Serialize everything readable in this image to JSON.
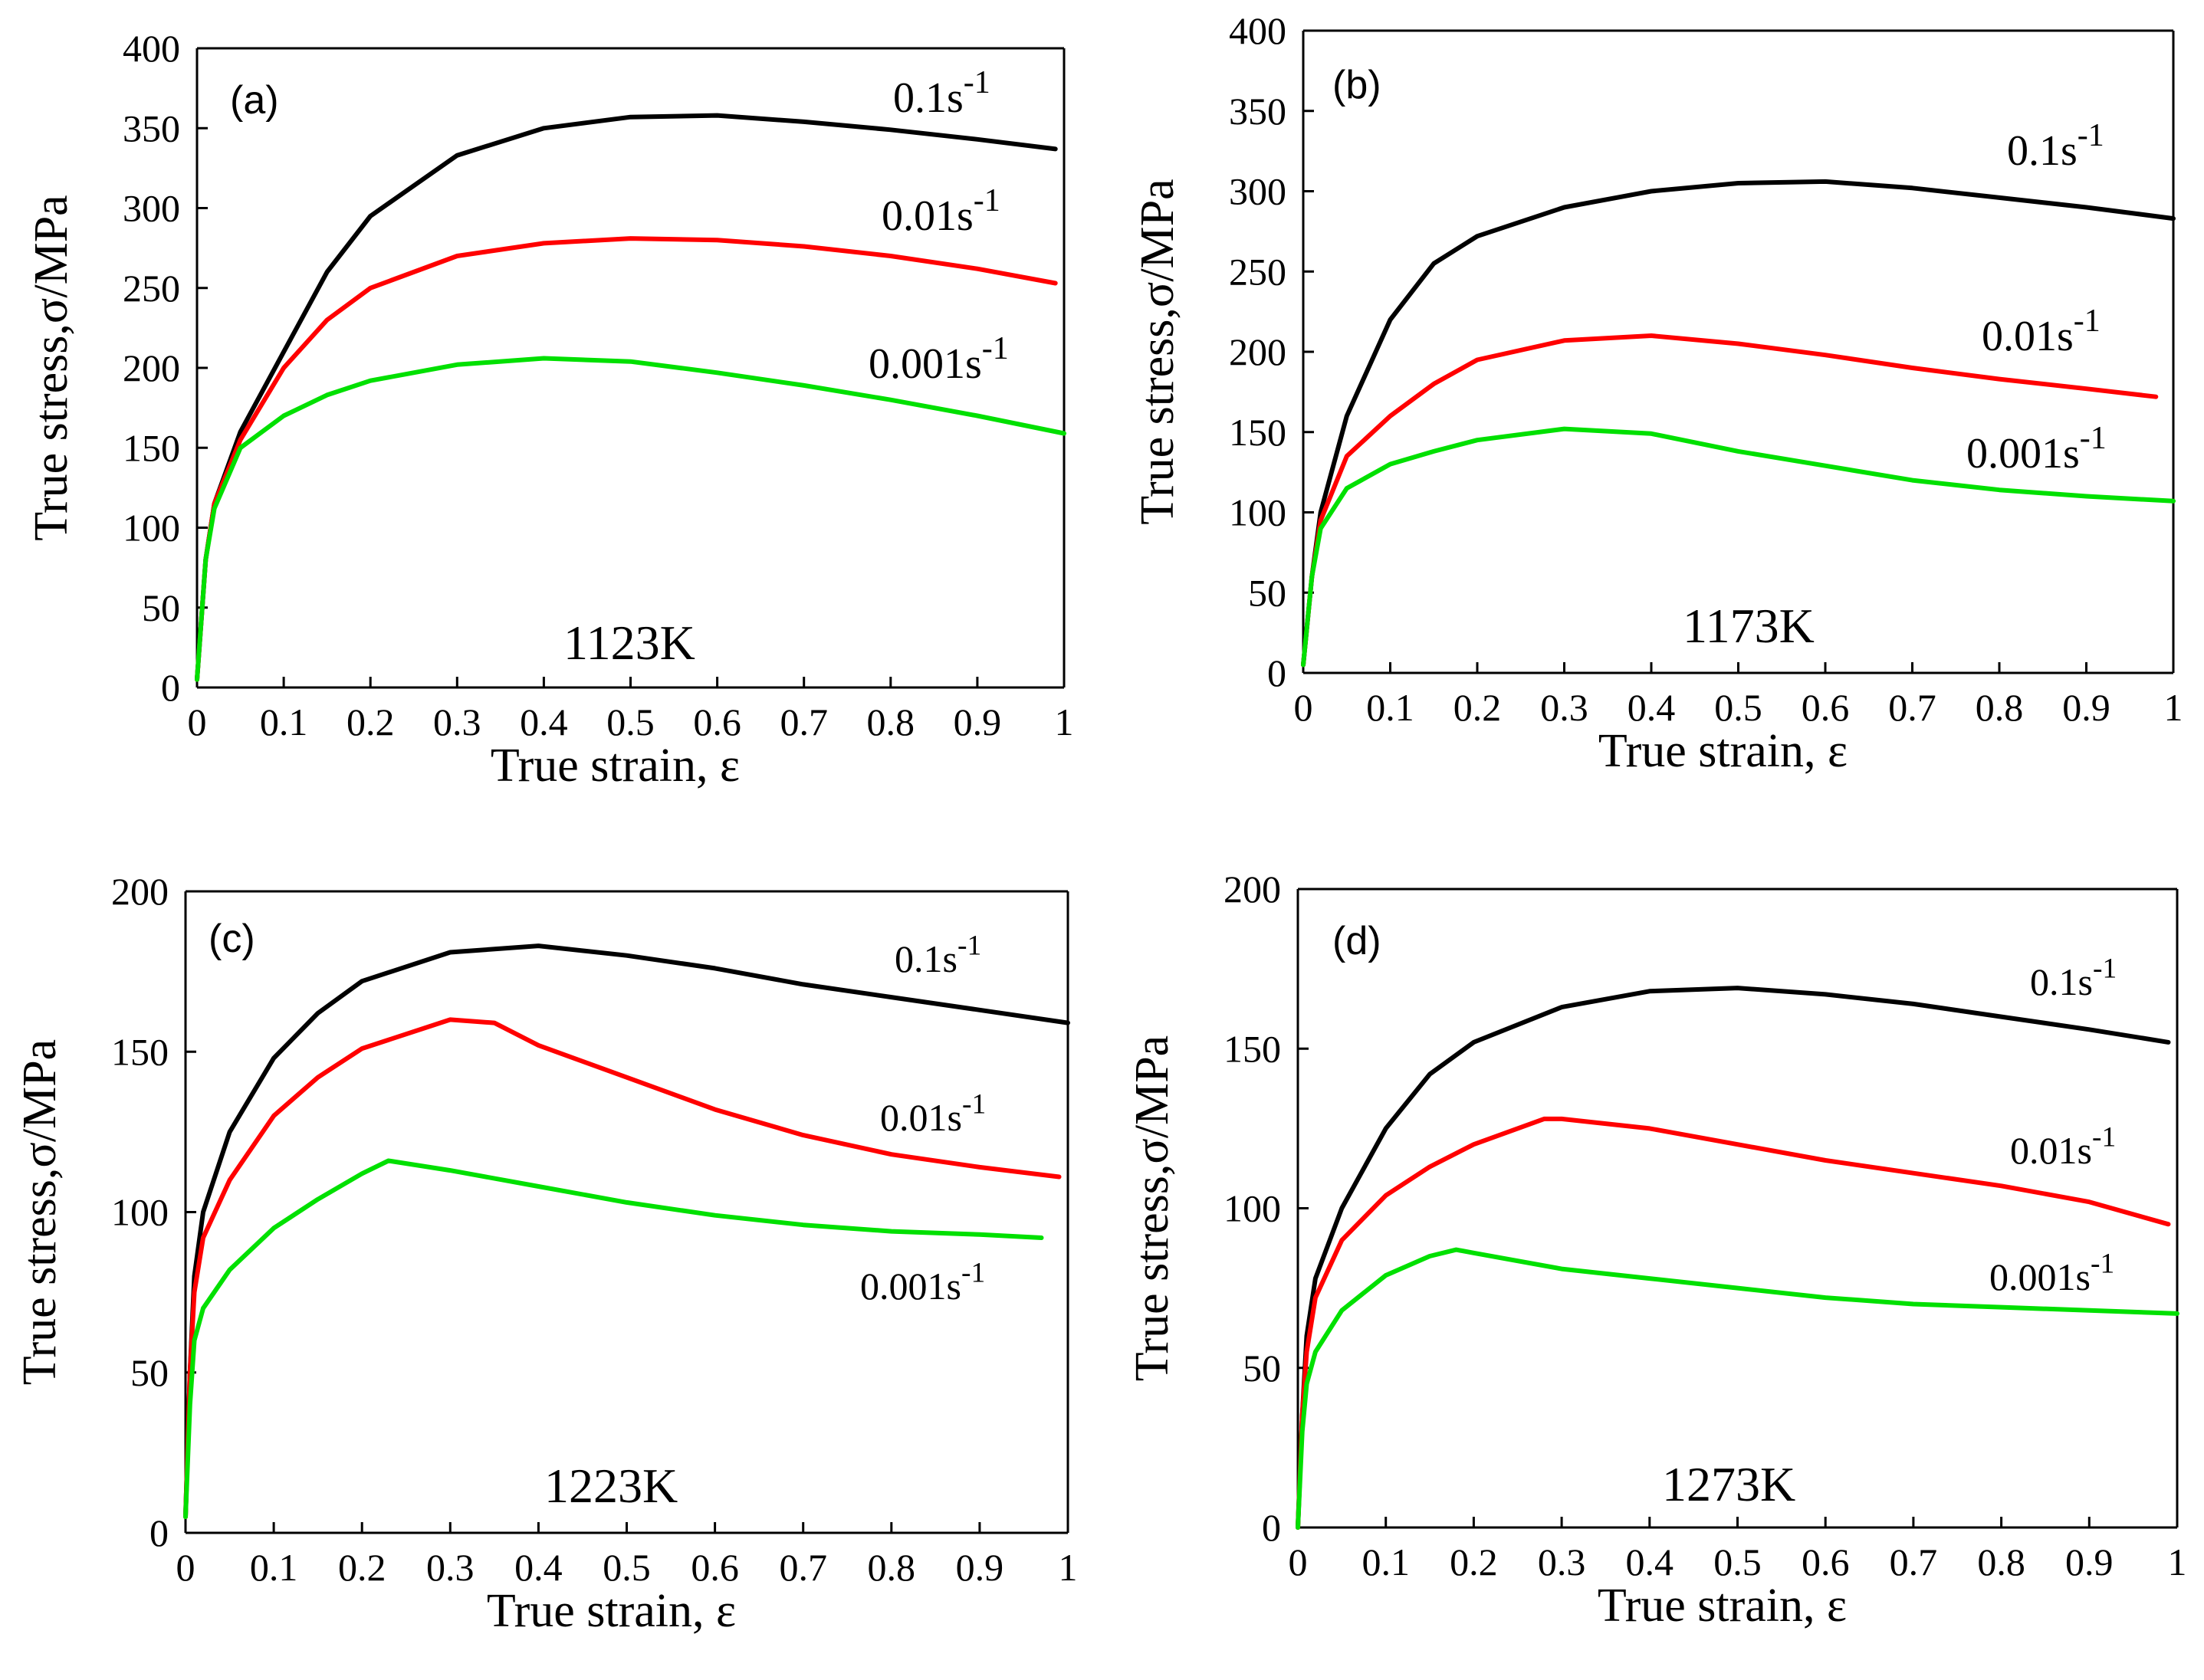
{
  "chart_data": [
    {
      "type": "line",
      "panel_label": "(a)",
      "temperature_label": "1123K",
      "xlabel": "True strain, ε",
      "ylabel": "True stress,σ/MPa",
      "xlim": [
        0,
        1
      ],
      "ylim": [
        0,
        400
      ],
      "xticks": [
        "0",
        "0.1",
        "0.2",
        "0.3",
        "0.4",
        "0.5",
        "0.6",
        "0.7",
        "0.8",
        "0.9",
        "1"
      ],
      "yticks": [
        "0",
        "50",
        "100",
        "150",
        "200",
        "250",
        "300",
        "350",
        "400"
      ],
      "series": [
        {
          "name": "0.1s-1",
          "label": "0.1s",
          "sup": "-1",
          "color": "#000000",
          "x": [
            0,
            0.01,
            0.02,
            0.05,
            0.1,
            0.15,
            0.2,
            0.3,
            0.4,
            0.5,
            0.6,
            0.7,
            0.8,
            0.9,
            0.99
          ],
          "y": [
            5,
            80,
            115,
            160,
            210,
            260,
            295,
            333,
            350,
            357,
            358,
            354,
            349,
            343,
            337
          ]
        },
        {
          "name": "0.01s-1",
          "label": "0.01s",
          "sup": "-1",
          "color": "#ff0000",
          "x": [
            0,
            0.01,
            0.02,
            0.05,
            0.1,
            0.15,
            0.2,
            0.3,
            0.4,
            0.5,
            0.6,
            0.7,
            0.8,
            0.9,
            0.99
          ],
          "y": [
            5,
            80,
            115,
            155,
            200,
            230,
            250,
            270,
            278,
            281,
            280,
            276,
            270,
            262,
            253
          ]
        },
        {
          "name": "0.001s-1",
          "label": "0.001s",
          "sup": "-1",
          "color": "#00e000",
          "x": [
            0,
            0.01,
            0.02,
            0.05,
            0.1,
            0.15,
            0.2,
            0.3,
            0.4,
            0.5,
            0.6,
            0.7,
            0.8,
            0.9,
            1.0
          ],
          "y": [
            5,
            80,
            112,
            150,
            170,
            183,
            192,
            202,
            206,
            204,
            197,
            189,
            180,
            170,
            159
          ]
        }
      ]
    },
    {
      "type": "line",
      "panel_label": "(b)",
      "temperature_label": "1173K",
      "xlabel": "True strain, ε",
      "ylabel": "True stress,σ/MPa",
      "xlim": [
        0,
        1
      ],
      "ylim": [
        0,
        400
      ],
      "xticks": [
        "0",
        "0.1",
        "0.2",
        "0.3",
        "0.4",
        "0.5",
        "0.6",
        "0.7",
        "0.8",
        "0.9",
        "1"
      ],
      "yticks": [
        "0",
        "50",
        "100",
        "150",
        "200",
        "250",
        "300",
        "350",
        "400"
      ],
      "series": [
        {
          "name": "0.1s-1",
          "label": "0.1s",
          "sup": "-1",
          "color": "#000000",
          "x": [
            0,
            0.01,
            0.02,
            0.05,
            0.1,
            0.15,
            0.2,
            0.3,
            0.4,
            0.5,
            0.6,
            0.7,
            0.8,
            0.9,
            1.0
          ],
          "y": [
            5,
            60,
            100,
            160,
            220,
            255,
            272,
            290,
            300,
            305,
            306,
            302,
            296,
            290,
            283
          ]
        },
        {
          "name": "0.01s-1",
          "label": "0.01s",
          "sup": "-1",
          "color": "#ff0000",
          "x": [
            0,
            0.01,
            0.02,
            0.05,
            0.1,
            0.15,
            0.2,
            0.3,
            0.4,
            0.5,
            0.6,
            0.7,
            0.8,
            0.9,
            0.98
          ],
          "y": [
            5,
            60,
            95,
            135,
            160,
            180,
            195,
            207,
            210,
            205,
            198,
            190,
            183,
            177,
            172
          ]
        },
        {
          "name": "0.001s-1",
          "label": "0.001s",
          "sup": "-1",
          "color": "#00e000",
          "x": [
            0,
            0.01,
            0.02,
            0.05,
            0.1,
            0.15,
            0.2,
            0.3,
            0.4,
            0.5,
            0.6,
            0.7,
            0.8,
            0.9,
            1.0
          ],
          "y": [
            5,
            60,
            90,
            115,
            130,
            138,
            145,
            152,
            149,
            138,
            129,
            120,
            114,
            110,
            107
          ]
        }
      ]
    },
    {
      "type": "line",
      "panel_label": "(c)",
      "temperature_label": "1223K",
      "xlabel": "True strain, ε",
      "ylabel": "True stress,σ/MPa",
      "xlim": [
        0,
        1
      ],
      "ylim": [
        0,
        200
      ],
      "xticks": [
        "0",
        "0.1",
        "0.2",
        "0.3",
        "0.4",
        "0.5",
        "0.6",
        "0.7",
        "0.8",
        "0.9",
        "1"
      ],
      "yticks": [
        "0",
        "50",
        "100",
        "150",
        "200"
      ],
      "series": [
        {
          "name": "0.1s-1",
          "label": "0.1s",
          "sup": "-1",
          "color": "#000000",
          "x": [
            0,
            0.005,
            0.01,
            0.02,
            0.05,
            0.1,
            0.15,
            0.2,
            0.3,
            0.4,
            0.5,
            0.6,
            0.7,
            0.8,
            0.9,
            1.0
          ],
          "y": [
            5,
            50,
            80,
            100,
            125,
            148,
            162,
            172,
            181,
            183,
            180,
            176,
            171,
            167,
            163,
            159
          ]
        },
        {
          "name": "0.01s-1",
          "label": "0.01s",
          "sup": "-1",
          "color": "#ff0000",
          "x": [
            0,
            0.005,
            0.01,
            0.02,
            0.05,
            0.1,
            0.15,
            0.2,
            0.3,
            0.35,
            0.4,
            0.5,
            0.6,
            0.7,
            0.8,
            0.9,
            0.99
          ],
          "y": [
            5,
            50,
            75,
            92,
            110,
            130,
            142,
            151,
            160,
            159,
            152,
            142,
            132,
            124,
            118,
            114,
            111
          ]
        },
        {
          "name": "0.001s-1",
          "label": "0.001s",
          "sup": "-1",
          "color": "#00e000",
          "x": [
            0,
            0.005,
            0.01,
            0.02,
            0.05,
            0.1,
            0.15,
            0.2,
            0.23,
            0.3,
            0.4,
            0.5,
            0.6,
            0.7,
            0.8,
            0.9,
            0.97
          ],
          "y": [
            5,
            40,
            60,
            70,
            82,
            95,
            104,
            112,
            116,
            113,
            108,
            103,
            99,
            96,
            94,
            93,
            92
          ]
        }
      ]
    },
    {
      "type": "line",
      "panel_label": "(d)",
      "temperature_label": "1273K",
      "xlabel": "True strain, ε",
      "ylabel": "True stress,σ/MPa",
      "xlim": [
        0,
        1
      ],
      "ylim": [
        0,
        200
      ],
      "xticks": [
        "0",
        "0.1",
        "0.2",
        "0.3",
        "0.4",
        "0.5",
        "0.6",
        "0.7",
        "0.8",
        "0.9",
        "1"
      ],
      "yticks": [
        "0",
        "50",
        "100",
        "150",
        "200"
      ],
      "series": [
        {
          "name": "0.1s-1",
          "label": "0.1s",
          "sup": "-1",
          "color": "#000000",
          "x": [
            0,
            0.005,
            0.01,
            0.02,
            0.05,
            0.1,
            0.15,
            0.2,
            0.3,
            0.4,
            0.5,
            0.6,
            0.7,
            0.8,
            0.9,
            0.99
          ],
          "y": [
            0,
            35,
            60,
            78,
            100,
            125,
            142,
            152,
            163,
            168,
            169,
            167,
            164,
            160,
            156,
            152
          ]
        },
        {
          "name": "0.01s-1",
          "label": "0.01s",
          "sup": "-1",
          "color": "#ff0000",
          "x": [
            0,
            0.005,
            0.01,
            0.02,
            0.05,
            0.1,
            0.15,
            0.2,
            0.28,
            0.3,
            0.4,
            0.5,
            0.6,
            0.7,
            0.8,
            0.9,
            0.99
          ],
          "y": [
            0,
            35,
            55,
            72,
            90,
            104,
            113,
            120,
            128,
            128,
            125,
            120,
            115,
            111,
            107,
            102,
            95
          ]
        },
        {
          "name": "0.001s-1",
          "label": "0.001s",
          "sup": "-1",
          "color": "#00e000",
          "x": [
            0,
            0.005,
            0.01,
            0.02,
            0.05,
            0.1,
            0.15,
            0.18,
            0.2,
            0.3,
            0.4,
            0.5,
            0.6,
            0.7,
            0.8,
            0.9,
            1.0
          ],
          "y": [
            0,
            30,
            45,
            55,
            68,
            79,
            85,
            87,
            86,
            81,
            78,
            75,
            72,
            70,
            69,
            68,
            67
          ]
        }
      ]
    }
  ]
}
